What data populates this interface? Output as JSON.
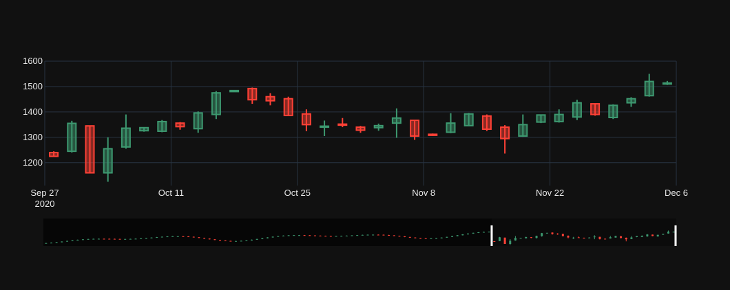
{
  "chart_data": {
    "type": "candlestick",
    "x_tick_labels": [
      "Sep 27",
      "Oct 11",
      "Oct 25",
      "Nov 8",
      "Nov 22",
      "Dec 6"
    ],
    "x_tick_dates": [
      "2020-09-27",
      "2020-10-11",
      "2020-10-25",
      "2020-11-08",
      "2020-11-22",
      "2020-12-06"
    ],
    "x_year_label": "2020",
    "y_tick_labels": [
      "1200",
      "1300",
      "1400",
      "1500",
      "1600"
    ],
    "ylim": [
      1110,
      1600
    ],
    "xlim": [
      "2020-09-27",
      "2020-12-06"
    ],
    "grid": true,
    "rangeslider": true,
    "colors": {
      "background": "#111111",
      "grid": "#283442",
      "increasing": "#3d9970",
      "decreasing": "#ff4136",
      "rangeslider_bg": "#0b0b0b",
      "handle": "#ffffff"
    },
    "candles": [
      {
        "date": "2020-09-28",
        "open": 1240,
        "high": 1245,
        "low": 1225,
        "close": 1225
      },
      {
        "date": "2020-09-30",
        "open": 1245,
        "high": 1365,
        "low": 1240,
        "close": 1355
      },
      {
        "date": "2020-10-02",
        "open": 1345,
        "high": 1345,
        "low": 1160,
        "close": 1160
      },
      {
        "date": "2020-10-04",
        "open": 1160,
        "high": 1300,
        "low": 1125,
        "close": 1255
      },
      {
        "date": "2020-10-06",
        "open": 1262,
        "high": 1390,
        "low": 1255,
        "close": 1336
      },
      {
        "date": "2020-10-08",
        "open": 1326,
        "high": 1340,
        "low": 1322,
        "close": 1338
      },
      {
        "date": "2020-10-10",
        "open": 1324,
        "high": 1368,
        "low": 1320,
        "close": 1362
      },
      {
        "date": "2020-10-12",
        "open": 1356,
        "high": 1360,
        "low": 1330,
        "close": 1342
      },
      {
        "date": "2020-10-14",
        "open": 1334,
        "high": 1402,
        "low": 1318,
        "close": 1396
      },
      {
        "date": "2020-10-16",
        "open": 1390,
        "high": 1482,
        "low": 1372,
        "close": 1475
      },
      {
        "date": "2020-10-18",
        "open": 1482,
        "high": 1485,
        "low": 1480,
        "close": 1484
      },
      {
        "date": "2020-10-20",
        "open": 1492,
        "high": 1496,
        "low": 1432,
        "close": 1448
      },
      {
        "date": "2020-10-22",
        "open": 1460,
        "high": 1474,
        "low": 1426,
        "close": 1444
      },
      {
        "date": "2020-10-24",
        "open": 1452,
        "high": 1460,
        "low": 1384,
        "close": 1386
      },
      {
        "date": "2020-10-26",
        "open": 1392,
        "high": 1410,
        "low": 1324,
        "close": 1350
      },
      {
        "date": "2020-10-28",
        "open": 1340,
        "high": 1366,
        "low": 1305,
        "close": 1344
      },
      {
        "date": "2020-10-30",
        "open": 1352,
        "high": 1376,
        "low": 1340,
        "close": 1348
      },
      {
        "date": "2020-11-01",
        "open": 1340,
        "high": 1345,
        "low": 1318,
        "close": 1328
      },
      {
        "date": "2020-11-03",
        "open": 1338,
        "high": 1354,
        "low": 1326,
        "close": 1346
      },
      {
        "date": "2020-11-05",
        "open": 1356,
        "high": 1414,
        "low": 1298,
        "close": 1376
      },
      {
        "date": "2020-11-07",
        "open": 1367,
        "high": 1368,
        "low": 1290,
        "close": 1305
      },
      {
        "date": "2020-11-09",
        "open": 1312,
        "high": 1315,
        "low": 1305,
        "close": 1310
      },
      {
        "date": "2020-11-11",
        "open": 1320,
        "high": 1395,
        "low": 1316,
        "close": 1356
      },
      {
        "date": "2020-11-13",
        "open": 1346,
        "high": 1396,
        "low": 1344,
        "close": 1392
      },
      {
        "date": "2020-11-15",
        "open": 1384,
        "high": 1390,
        "low": 1325,
        "close": 1332
      },
      {
        "date": "2020-11-17",
        "open": 1340,
        "high": 1348,
        "low": 1236,
        "close": 1295
      },
      {
        "date": "2020-11-19",
        "open": 1305,
        "high": 1390,
        "low": 1302,
        "close": 1350
      },
      {
        "date": "2020-11-21",
        "open": 1360,
        "high": 1390,
        "low": 1356,
        "close": 1388
      },
      {
        "date": "2020-11-23",
        "open": 1362,
        "high": 1410,
        "low": 1358,
        "close": 1390
      },
      {
        "date": "2020-11-25",
        "open": 1380,
        "high": 1448,
        "low": 1368,
        "close": 1436
      },
      {
        "date": "2020-11-27",
        "open": 1432,
        "high": 1434,
        "low": 1385,
        "close": 1390
      },
      {
        "date": "2020-11-29",
        "open": 1378,
        "high": 1430,
        "low": 1372,
        "close": 1426
      },
      {
        "date": "2020-12-01",
        "open": 1436,
        "high": 1458,
        "low": 1420,
        "close": 1452
      },
      {
        "date": "2020-12-03",
        "open": 1464,
        "high": 1550,
        "low": 1460,
        "close": 1520
      },
      {
        "date": "2020-12-05",
        "open": 1510,
        "high": 1522,
        "low": 1506,
        "close": 1514
      }
    ]
  }
}
